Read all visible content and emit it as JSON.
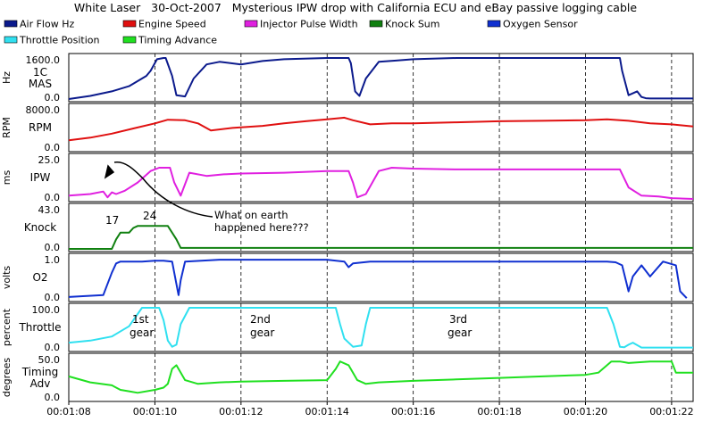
{
  "title": "White Laser   30-Oct-2007   Mysterious IPW drop with California ECU and eBay passive logging cable",
  "colors": {
    "airflow": "#0b1a8c",
    "rpm": "#e01010",
    "ipw": "#e020e0",
    "knock": "#108010",
    "o2": "#1030d0",
    "throttle": "#30e0f0",
    "timing": "#20e020"
  },
  "legend": [
    {
      "label": "Air Flow Hz",
      "color": "#0b1a8c"
    },
    {
      "label": "Engine Speed",
      "color": "#e01010"
    },
    {
      "label": "Injector Pulse Width",
      "color": "#e020e0"
    },
    {
      "label": "Knock Sum",
      "color": "#108010"
    },
    {
      "label": "Oxygen Sensor",
      "color": "#1030d0"
    },
    {
      "label": "Throttle Position",
      "color": "#30e0f0"
    },
    {
      "label": "Timing Advance",
      "color": "#20e020"
    }
  ],
  "annotations": {
    "callout": [
      "What on earth",
      "happened here???"
    ],
    "knock_17": "17",
    "knock_24": "24",
    "gear1": [
      "1st",
      "gear"
    ],
    "gear2": [
      "2nd",
      "gear"
    ],
    "gear3": [
      "3rd",
      "gear"
    ]
  },
  "chart_data": {
    "type": "line",
    "xlim": [
      68,
      82.5
    ],
    "x_tick_values": [
      68,
      70,
      72,
      74,
      76,
      78,
      80,
      82
    ],
    "x_tick_labels": [
      "00:01:08",
      "00:01:10",
      "00:01:12",
      "00:01:14",
      "00:01:16",
      "00:01:18",
      "00:01:20",
      "00:01:22"
    ],
    "panels": [
      {
        "key": "airflow",
        "unit": "Hz",
        "name_lines": [
          "1C",
          "MAS"
        ],
        "ylim": [
          0,
          1600
        ],
        "tick_labels": [
          "1600.0",
          "0.0"
        ],
        "series": [
          {
            "name": "Air Flow Hz",
            "color_key": "airflow",
            "x": [
              68,
              68.5,
              69,
              69.4,
              69.8,
              69.9,
              70.05,
              70.2,
              70.25,
              70.4,
              70.5,
              70.7,
              70.9,
              71.2,
              71.5,
              72,
              72.5,
              73,
              74,
              74.5,
              74.55,
              74.65,
              74.75,
              74.9,
              75.2,
              75.6,
              76,
              77,
              78,
              80,
              80.8,
              80.85,
              81,
              81.2,
              81.3,
              81.4,
              81.5,
              82,
              82.5
            ],
            "y": [
              0,
              120,
              300,
              500,
              900,
              1100,
              1550,
              1600,
              1600,
              900,
              150,
              100,
              800,
              1350,
              1450,
              1350,
              1480,
              1550,
              1600,
              1600,
              1400,
              300,
              120,
              800,
              1450,
              1500,
              1550,
              1600,
              1600,
              1600,
              1600,
              1100,
              150,
              300,
              80,
              30,
              20,
              20,
              20
            ]
          }
        ]
      },
      {
        "key": "rpm",
        "unit": "RPM",
        "name_lines": [
          "RPM"
        ],
        "ylim": [
          0,
          8000
        ],
        "tick_labels": [
          "8000.0",
          "0.0"
        ],
        "series": [
          {
            "name": "Engine Speed",
            "color_key": "rpm",
            "x": [
              68,
              68.5,
              69,
              69.5,
              70,
              70.3,
              70.7,
              71,
              71.3,
              71.8,
              72.5,
              73,
              73.5,
              74,
              74.4,
              74.6,
              75,
              75.5,
              76,
              77,
              78,
              79,
              80,
              80.5,
              81,
              81.5,
              82,
              82.5
            ],
            "y": [
              1700,
              2200,
              3000,
              4000,
              5000,
              5700,
              5600,
              5000,
              3600,
              4100,
              4500,
              5000,
              5400,
              5800,
              6100,
              5600,
              4800,
              5000,
              5000,
              5200,
              5400,
              5500,
              5600,
              5800,
              5500,
              5000,
              4800,
              4400
            ]
          }
        ]
      },
      {
        "key": "ipw",
        "unit": "ms",
        "name_lines": [
          "IPW"
        ],
        "ylim": [
          0,
          25
        ],
        "tick_labels": [
          "25.0",
          "0.0"
        ],
        "series": [
          {
            "name": "Injector Pulse Width",
            "color_key": "ipw",
            "x": [
              68,
              68.5,
              68.8,
              68.9,
              69,
              69.1,
              69.3,
              69.6,
              69.9,
              70.1,
              70.2,
              70.35,
              70.45,
              70.6,
              70.8,
              71.2,
              71.6,
              72,
              73,
              74,
              74.5,
              74.6,
              74.7,
              74.9,
              75.2,
              75.5,
              76,
              77,
              78,
              79,
              80,
              80.8,
              81,
              81.3,
              81.7,
              82,
              82.5
            ],
            "y": [
              2,
              3,
              4.5,
              1,
              4,
              3,
              5,
              10,
              17,
              19,
              19,
              19,
              10,
              2,
              16,
              14,
              15,
              15.5,
              16,
              17,
              17,
              10,
              1,
              3,
              17,
              19,
              18.5,
              18,
              18,
              18,
              18,
              18,
              7,
              2,
              1.5,
              0.5,
              0
            ]
          }
        ]
      },
      {
        "key": "knock",
        "unit": "",
        "name_lines": [
          "Knock"
        ],
        "ylim": [
          0,
          43
        ],
        "tick_labels": [
          "43.0",
          "0.0"
        ],
        "series": [
          {
            "name": "Knock Sum",
            "color_key": "knock",
            "x": [
              68,
              69,
              69.1,
              69.2,
              69.3,
              69.4,
              69.5,
              69.6,
              69.7,
              70,
              70.2,
              70.3,
              70.5,
              70.6,
              71,
              75,
              82.5
            ],
            "y": [
              0,
              0,
              10,
              17,
              17,
              17,
              22,
              24,
              24,
              24,
              24,
              24,
              10,
              1,
              1,
              1,
              1
            ]
          }
        ]
      },
      {
        "key": "o2",
        "unit": "volts",
        "name_lines": [
          "O2"
        ],
        "ylim": [
          0,
          1.1
        ],
        "tick_labels": [
          "1.0",
          "0.0"
        ],
        "series": [
          {
            "name": "Oxygen Sensor",
            "color_key": "o2",
            "x": [
              68,
              68.8,
              69,
              69.1,
              69.2,
              69.4,
              69.7,
              70,
              70.2,
              70.4,
              70.5,
              70.55,
              70.6,
              70.7,
              71.5,
              72,
              74,
              74.4,
              74.5,
              74.6,
              75,
              75.5,
              76,
              78,
              79,
              80,
              80.5,
              80.7,
              80.85,
              81,
              81.1,
              81.3,
              81.5,
              81.8,
              82.1,
              82.2,
              82.35
            ],
            "y": [
              0.05,
              0.1,
              0.7,
              0.95,
              1.0,
              1.0,
              1.0,
              1.02,
              1.02,
              1.0,
              0.4,
              0.1,
              0.5,
              1.0,
              1.05,
              1.05,
              1.05,
              1.0,
              0.85,
              0.95,
              1.0,
              1.0,
              1.0,
              1.0,
              1.0,
              1.0,
              1.0,
              0.98,
              0.9,
              0.2,
              0.6,
              0.9,
              0.6,
              1.0,
              0.9,
              0.2,
              0.02
            ]
          }
        ]
      },
      {
        "key": "throttle",
        "unit": "percent",
        "name_lines": [
          "Throttle"
        ],
        "ylim": [
          0,
          100
        ],
        "tick_labels": [
          "100.0",
          "0.0"
        ],
        "series": [
          {
            "name": "Throttle Position",
            "color_key": "throttle",
            "x": [
              68,
              68.5,
              69,
              69.4,
              69.7,
              69.9,
              70,
              70.1,
              70.2,
              70.3,
              70.4,
              70.5,
              70.6,
              70.8,
              72,
              74,
              74.2,
              74.3,
              74.4,
              74.6,
              74.8,
              74.9,
              75,
              78,
              80.5,
              80.65,
              80.8,
              80.9,
              81,
              81.1,
              81.3,
              81.5,
              82,
              82.5
            ],
            "y": [
              15,
              20,
              30,
              55,
              100,
              100,
              100,
              100,
              70,
              20,
              5,
              10,
              60,
              100,
              100,
              100,
              100,
              60,
              25,
              5,
              8,
              60,
              100,
              100,
              100,
              60,
              5,
              4,
              10,
              15,
              3,
              3,
              3,
              3
            ]
          }
        ]
      },
      {
        "key": "timing",
        "unit": "degrees",
        "name_lines": [
          "Timing",
          "Adv"
        ],
        "ylim": [
          0,
          55
        ],
        "tick_labels": [
          "50.0",
          "0.0"
        ],
        "series": [
          {
            "name": "Timing Advance",
            "color_key": "timing",
            "x": [
              68,
              68.5,
              69,
              69.2,
              69.4,
              69.6,
              70,
              70.2,
              70.3,
              70.4,
              70.5,
              70.7,
              71,
              71.5,
              72,
              73,
              74,
              74.2,
              74.3,
              74.5,
              74.7,
              74.9,
              75.2,
              76,
              77,
              78,
              79,
              80,
              80.3,
              80.5,
              80.6,
              80.8,
              81,
              81.5,
              82,
              82.1,
              82.5
            ],
            "y": [
              30,
              22,
              18,
              12,
              10,
              8,
              12,
              15,
              20,
              40,
              45,
              25,
              20,
              22,
              23,
              24,
              25,
              40,
              50,
              45,
              25,
              20,
              22,
              24,
              26,
              28,
              30,
              32,
              35,
              45,
              50,
              50,
              48,
              50,
              50,
              35,
              35
            ]
          }
        ]
      }
    ]
  }
}
